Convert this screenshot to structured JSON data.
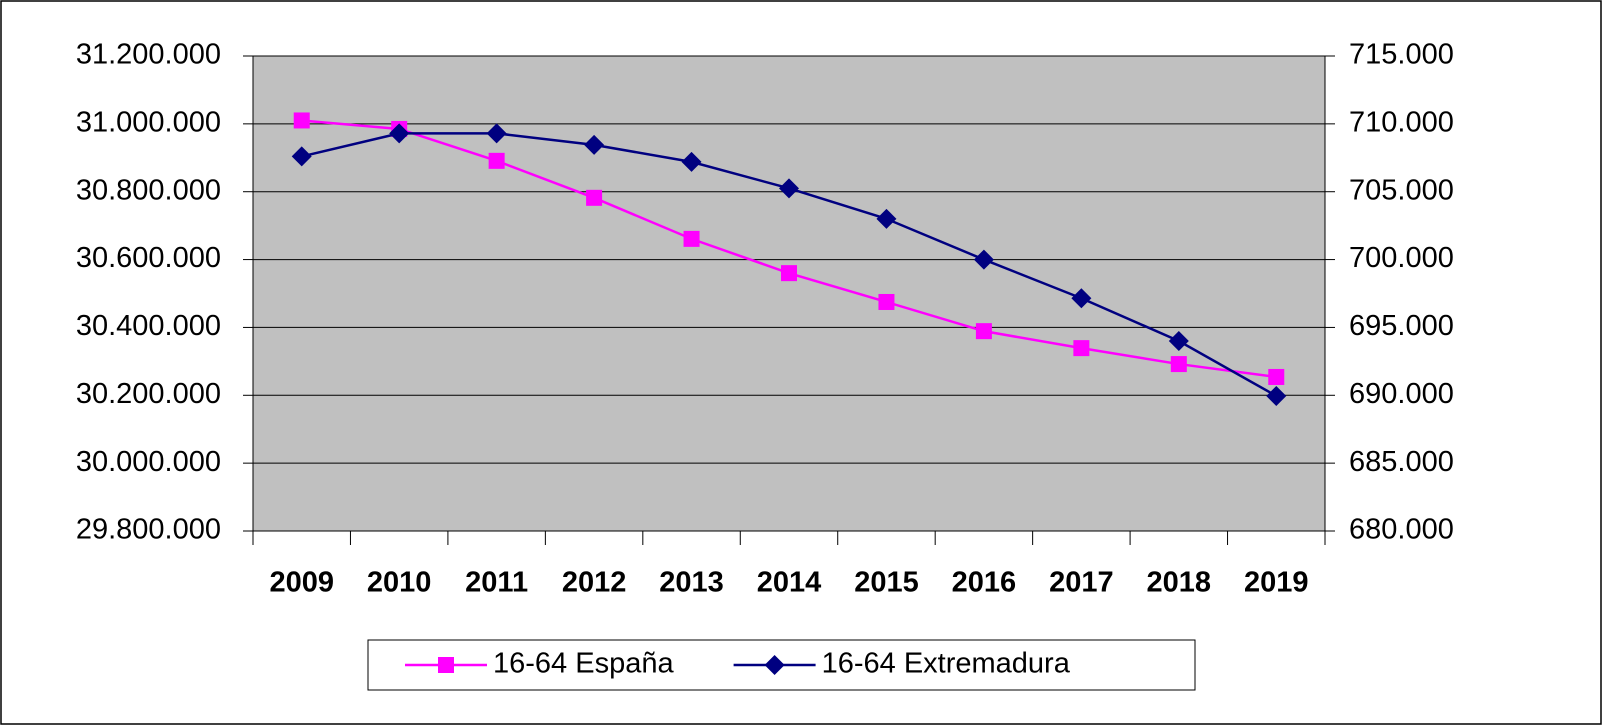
{
  "chart_data": {
    "type": "line",
    "categories": [
      "2009",
      "2010",
      "2011",
      "2012",
      "2013",
      "2014",
      "2015",
      "2016",
      "2017",
      "2018",
      "2019"
    ],
    "series": [
      {
        "name": "16-64 España",
        "color": "#ff00ff",
        "marker": "square",
        "values": [
          31010000,
          30985000,
          30891000,
          30782000,
          30661000,
          30560000,
          30475000,
          30389000,
          30339000,
          30292000,
          30254000
        ]
      },
      {
        "name": "16-64 Extremadura",
        "color": "#000080",
        "marker": "diamond",
        "axis": "y2",
        "values": [
          707600,
          709300,
          709300,
          708450,
          707200,
          705250,
          703000,
          700000,
          697150,
          694000,
          689950
        ]
      }
    ],
    "ylim": [
      29800000,
      31200000
    ],
    "yticks": [
      {
        "value": 29800000,
        "label": "29.800.000"
      },
      {
        "value": 30000000,
        "label": "30.000.000"
      },
      {
        "value": 30200000,
        "label": "30.200.000"
      },
      {
        "value": 30400000,
        "label": "30.400.000"
      },
      {
        "value": 30600000,
        "label": "30.600.000"
      },
      {
        "value": 30800000,
        "label": "30.800.000"
      },
      {
        "value": 31000000,
        "label": "31.000.000"
      },
      {
        "value": 31200000,
        "label": "31.200.000"
      }
    ],
    "y2lim": [
      680000,
      715000
    ],
    "y2ticks": [
      {
        "value": 680000,
        "label": "680.000"
      },
      {
        "value": 685000,
        "label": "685.000"
      },
      {
        "value": 690000,
        "label": "690.000"
      },
      {
        "value": 695000,
        "label": "695.000"
      },
      {
        "value": 700000,
        "label": "700.000"
      },
      {
        "value": 705000,
        "label": "705.000"
      },
      {
        "value": 710000,
        "label": "710.000"
      },
      {
        "value": 715000,
        "label": "715.000"
      }
    ],
    "grid": true,
    "legend": "bottom",
    "plot_background": "#c0c0c0"
  }
}
